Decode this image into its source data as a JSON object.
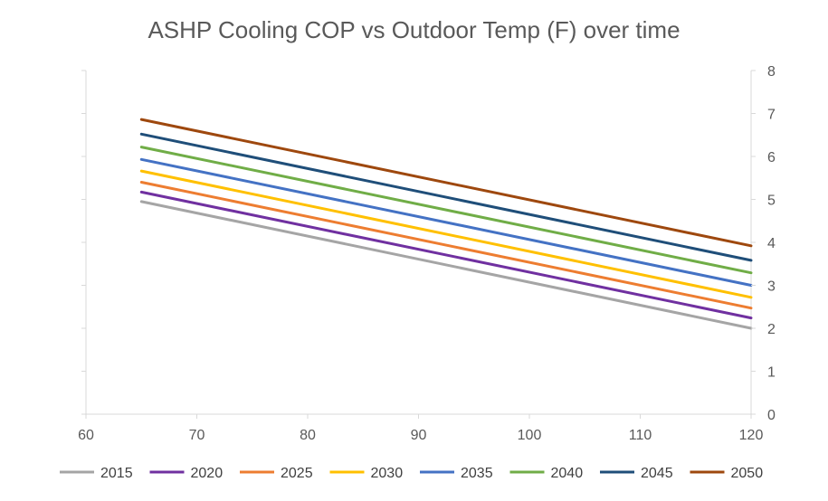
{
  "chart_data": {
    "type": "line",
    "title": "ASHP Cooling COP vs Outdoor Temp (F) over time",
    "xlabel": "",
    "ylabel": "",
    "xlim": [
      60,
      120
    ],
    "ylim": [
      0,
      8
    ],
    "x_ticks": [
      "60",
      "70",
      "80",
      "90",
      "100",
      "110",
      "120"
    ],
    "y_ticks": [
      "0",
      "1",
      "2",
      "3",
      "4",
      "5",
      "6",
      "7",
      "8"
    ],
    "y_axis_side": "right",
    "grid": false,
    "legend_position": "bottom",
    "x": [
      65,
      120
    ],
    "series": [
      {
        "name": "2015",
        "color": "#a5a5a5",
        "values": [
          4.95,
          2.0
        ]
      },
      {
        "name": "2020",
        "color": "#7030a0",
        "values": [
          5.17,
          2.24
        ]
      },
      {
        "name": "2025",
        "color": "#ed7d31",
        "values": [
          5.4,
          2.47
        ]
      },
      {
        "name": "2030",
        "color": "#ffc000",
        "values": [
          5.66,
          2.72
        ]
      },
      {
        "name": "2035",
        "color": "#4472c4",
        "values": [
          5.93,
          3.0
        ]
      },
      {
        "name": "2040",
        "color": "#70ad47",
        "values": [
          6.22,
          3.29
        ]
      },
      {
        "name": "2045",
        "color": "#1f4e79",
        "values": [
          6.52,
          3.58
        ]
      },
      {
        "name": "2050",
        "color": "#9e480e",
        "values": [
          6.86,
          3.92
        ]
      }
    ]
  }
}
